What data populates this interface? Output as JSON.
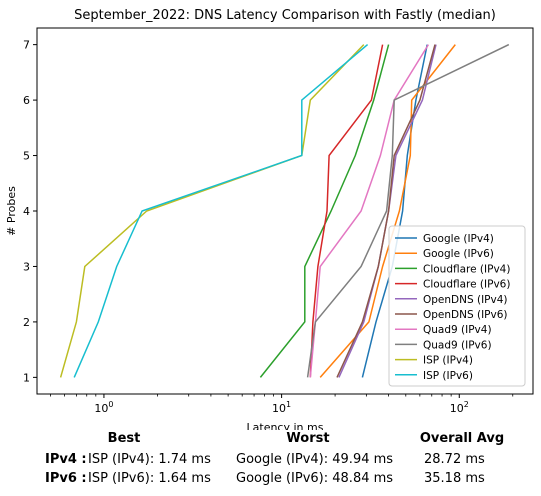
{
  "chart_data": {
    "type": "line",
    "title": "September_2022: DNS Latency Comparison with Fastly (median)",
    "xlabel": "Latency in ms",
    "ylabel": "# Probes",
    "xscale": "log",
    "xlim": [
      0.42,
      260
    ],
    "ylim": [
      0.7,
      7.3
    ],
    "xticks": [
      {
        "value": 1,
        "label": "10^0"
      },
      {
        "value": 10,
        "label": "10^1"
      },
      {
        "value": 100,
        "label": "10^2"
      }
    ],
    "yticks": [
      1,
      2,
      3,
      4,
      5,
      6,
      7
    ],
    "grid": false,
    "legend_position": "bottom-right",
    "series": [
      {
        "name": "Google (IPv4)",
        "color": "#1f77b4",
        "x": [
          28.5,
          34,
          42,
          48,
          51,
          57,
          66
        ],
        "y": [
          1,
          2,
          3,
          4,
          5,
          6,
          7
        ]
      },
      {
        "name": "Google (IPv6)",
        "color": "#ff7f0e",
        "x": [
          16.5,
          31,
          37,
          46,
          53,
          54,
          95
        ],
        "y": [
          1,
          2,
          3,
          4,
          5,
          6,
          7
        ]
      },
      {
        "name": "Cloudflare (IPv4)",
        "color": "#2ca02c",
        "x": [
          7.6,
          13.5,
          13.5,
          19,
          26,
          33,
          40
        ],
        "y": [
          1,
          2,
          3,
          4,
          5,
          6,
          7
        ]
      },
      {
        "name": "Cloudflare (IPv6)",
        "color": "#d62728",
        "x": [
          14.5,
          15,
          16,
          18,
          18.5,
          32,
          37
        ],
        "y": [
          1,
          2,
          3,
          4,
          5,
          6,
          7
        ]
      },
      {
        "name": "OpenDNS (IPv4)",
        "color": "#9467bd",
        "x": [
          21,
          29,
          35,
          40,
          44,
          62,
          74
        ],
        "y": [
          1,
          2,
          3,
          4,
          5,
          6,
          7
        ]
      },
      {
        "name": "OpenDNS (IPv6)",
        "color": "#8c564b",
        "x": [
          20.5,
          28.5,
          35,
          40,
          43,
          60,
          73
        ],
        "y": [
          1,
          2,
          3,
          4,
          5,
          6,
          7
        ]
      },
      {
        "name": "Quad9 (IPv4)",
        "color": "#e377c2",
        "x": [
          14.5,
          15.5,
          16.5,
          28,
          36,
          43,
          67
        ],
        "y": [
          1,
          2,
          3,
          4,
          5,
          6,
          7
        ]
      },
      {
        "name": "Quad9 (IPv6)",
        "color": "#7f7f7f",
        "x": [
          14,
          15.5,
          28,
          39,
          42,
          43,
          190
        ],
        "y": [
          1,
          2,
          3,
          4,
          5,
          6,
          7
        ]
      },
      {
        "name": "ISP (IPv4)",
        "color": "#bcbd22",
        "x": [
          0.57,
          0.7,
          0.78,
          1.74,
          13,
          14.5,
          29
        ],
        "y": [
          1,
          2,
          3,
          4,
          5,
          6,
          7
        ]
      },
      {
        "name": "ISP (IPv6)",
        "color": "#17becf",
        "x": [
          0.68,
          0.93,
          1.18,
          1.64,
          13,
          13,
          30.5
        ],
        "y": [
          1,
          2,
          3,
          4,
          5,
          6,
          7
        ]
      }
    ]
  },
  "summary": {
    "headers": {
      "best": "Best",
      "worst": "Worst",
      "avg": "Overall Avg"
    },
    "rows": [
      {
        "label": "IPv4 :",
        "best": "ISP (IPv4): 1.74 ms",
        "worst": "Google (IPv4): 49.94 ms",
        "avg": "28.72 ms"
      },
      {
        "label": "IPv6 :",
        "best": "ISP (IPv6): 1.64 ms",
        "worst": "Google (IPv6): 48.84 ms",
        "avg": "35.18 ms"
      }
    ]
  }
}
